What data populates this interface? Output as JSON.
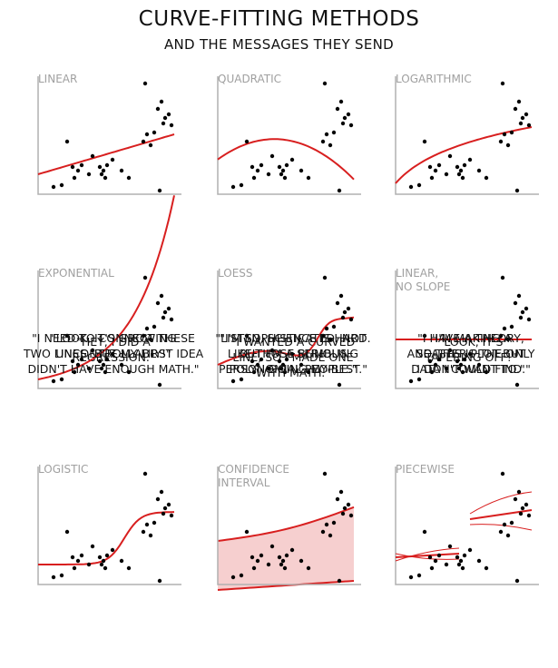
{
  "header": {
    "title": "CURVE-FITTING METHODS",
    "subtitle": "AND THE MESSAGES THEY SEND"
  },
  "colors": {
    "axis": "#b0b0b0",
    "fit": "#d81f1f",
    "band_fill": "#f6cfcf",
    "points": "#000000"
  },
  "chart_data": [
    {
      "type": "scatter",
      "name": "linear",
      "title_lines": [
        "LINEAR"
      ],
      "caption_lines": [
        "\"HEY, I DID A",
        "REGRESSION.\""
      ],
      "fit": "linear"
    },
    {
      "type": "scatter",
      "name": "quadratic",
      "title_lines": [
        "QUADRATIC"
      ],
      "caption_lines": [
        "\"I WANTED A CURVED",
        "LINE, SO I MADE ONE",
        "WITH MATH.\""
      ],
      "fit": "quadratic"
    },
    {
      "type": "scatter",
      "name": "logarithmic",
      "title_lines": [
        "LOGARITHMIC"
      ],
      "caption_lines": [
        "\"LOOK, IT'S",
        "TAPERING OFF!\""
      ],
      "fit": "logarithmic"
    },
    {
      "type": "scatter",
      "name": "exponential",
      "title_lines": [
        "EXPONENTIAL"
      ],
      "caption_lines": [
        "\"LOOK, IT'S GROWING",
        "UNCONTROLLABLY!\""
      ],
      "fit": "exponential"
    },
    {
      "type": "scatter",
      "name": "loess",
      "title_lines": [
        "LOESS"
      ],
      "caption_lines": [
        "\"I'M SOPHISTICATED, NOT",
        "LIKE THOSE BUMBLING",
        "POLYNOMIAL PEOPLE.\""
      ],
      "fit": "loess"
    },
    {
      "type": "scatter",
      "name": "linear-no-slope",
      "title_lines": [
        "LINEAR,",
        "NO SLOPE"
      ],
      "caption_lines": [
        "\"I'M MAKING A",
        "SCATTER PLOT BUT",
        "I DON'T WANT TO.\""
      ],
      "fit": "flat"
    },
    {
      "type": "scatter",
      "name": "logistic",
      "title_lines": [
        "LOGISTIC"
      ],
      "caption_lines": [
        "\"I NEED TO CONNECT THESE",
        "TWO LINES, BUT MY FIRST IDEA",
        "DIDN'T HAVE ENOUGH MATH.\""
      ],
      "fit": "logistic"
    },
    {
      "type": "scatter",
      "name": "confidence-interval",
      "title_lines": [
        "CONFIDENCE",
        "INTERVAL"
      ],
      "caption_lines": [
        "\"LISTEN, SCIENCE IS HARD.",
        "BUT I'M A SERIOUS",
        "PERSON DOING MY BEST.\""
      ],
      "fit": "band"
    },
    {
      "type": "scatter",
      "name": "piecewise",
      "title_lines": [
        "PIECEWISE"
      ],
      "caption_lines": [
        "\"I HAVE A THEORY,",
        "AND THIS IS THE ONLY",
        "DATA I COULD FIND.\""
      ],
      "fit": "piecewise"
    }
  ]
}
